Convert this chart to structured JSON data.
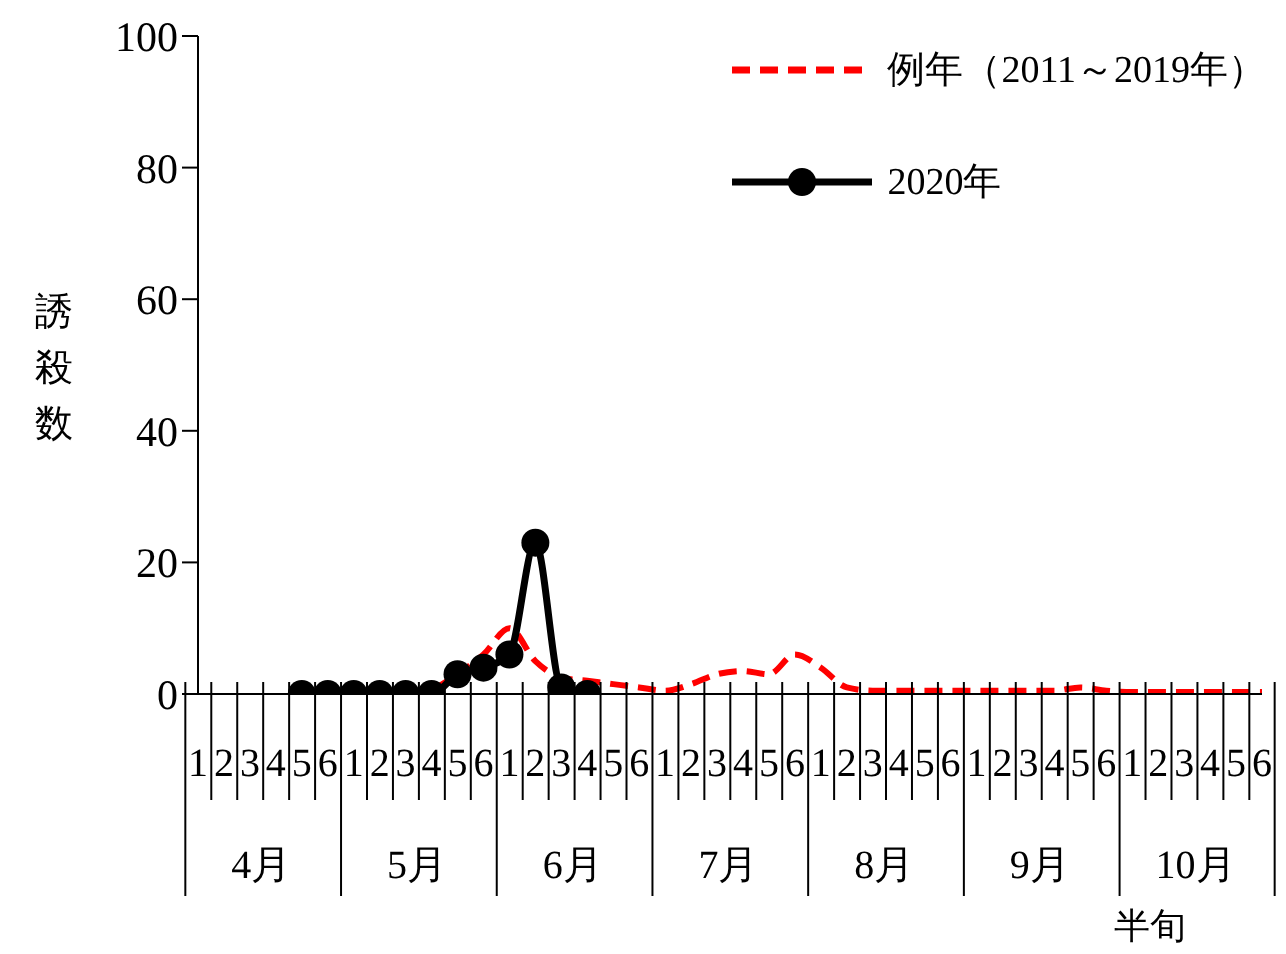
{
  "chart_data": {
    "type": "line",
    "ylabel": "誘殺数",
    "xlabel": "半旬",
    "categories": [
      "1",
      "2",
      "3",
      "4",
      "5",
      "6",
      "1",
      "2",
      "3",
      "4",
      "5",
      "6",
      "1",
      "2",
      "3",
      "4",
      "5",
      "6",
      "1",
      "2",
      "3",
      "4",
      "5",
      "6",
      "1",
      "2",
      "3",
      "4",
      "5",
      "6",
      "1",
      "2",
      "3",
      "4",
      "5",
      "6",
      "1",
      "2",
      "3",
      "4",
      "5",
      "6"
    ],
    "annotations": [
      {
        "text": "4月"
      },
      {
        "text": "5月"
      },
      {
        "text": "6月"
      },
      {
        "text": "7月"
      },
      {
        "text": "8月"
      },
      {
        "text": "9月"
      },
      {
        "text": "10月"
      }
    ],
    "series": [
      {
        "name": "例年（2011～2019年）",
        "color": "#ff0000",
        "line_style": "dashed",
        "marker": "none",
        "values": [
          null,
          null,
          null,
          null,
          null,
          null,
          null,
          null,
          null,
          0.5,
          3,
          6,
          10,
          5,
          2.5,
          2,
          1.5,
          1,
          0.5,
          1.5,
          3,
          3.5,
          3,
          6,
          4,
          1,
          0.5,
          0.5,
          0.5,
          0.5,
          0.5,
          0.5,
          0.5,
          0.5,
          1,
          0.5,
          0.3,
          0.3,
          0.3,
          0.3,
          0.3,
          0.3
        ]
      },
      {
        "name": "2020年",
        "color": "#000000",
        "line_style": "solid",
        "marker": "circle",
        "values": [
          null,
          null,
          null,
          null,
          0,
          0,
          0,
          0,
          0,
          0,
          3,
          4,
          6,
          23,
          1,
          0,
          null,
          null,
          null,
          null,
          null,
          null,
          null,
          null,
          null,
          null,
          null,
          null,
          null,
          null,
          null,
          null,
          null,
          null,
          null,
          null,
          null,
          null,
          null,
          null,
          null,
          null
        ]
      }
    ],
    "ylim": [
      0,
      100
    ],
    "yticks": [
      0,
      20,
      40,
      60,
      80,
      100
    ],
    "grid": false,
    "legend": "top right"
  }
}
